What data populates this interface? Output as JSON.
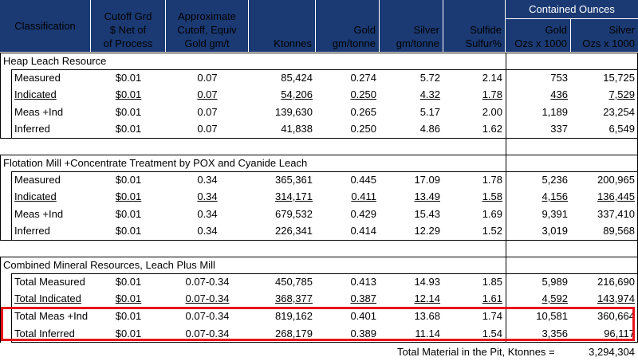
{
  "header": {
    "classification": "Classification",
    "cutoff_grd": [
      "Cutoff Grd",
      "$ Net of",
      "of Process"
    ],
    "approx_cutoff": [
      "Approximate",
      "Cutoff, Equiv",
      "Gold gm/t"
    ],
    "ktonnes": "Ktonnes",
    "gold": [
      "Gold",
      "gm/tonne"
    ],
    "silver": [
      "Silver",
      "gm/tonne"
    ],
    "sulfide": [
      "Sulfide",
      "Sulfur%"
    ],
    "contained_ounces": "Contained Ounces",
    "co_gold": [
      "Gold",
      "Ozs x 1000"
    ],
    "co_silver": [
      "Silver",
      "Ozs x 1000"
    ]
  },
  "sections": [
    {
      "title": "Heap Leach Resource",
      "rows": [
        {
          "label": "Measured",
          "cutoff": "$0.01",
          "approx": "0.07",
          "ktonnes": "85,424",
          "gold": "0.274",
          "silver": "5.72",
          "sulfur": "2.14",
          "oz_gold": "753",
          "oz_silver": "15,725",
          "underline": false
        },
        {
          "label": "Indicated",
          "cutoff": "$0.01",
          "approx": "0.07",
          "ktonnes": "54,206",
          "gold": "0.250",
          "silver": "4.32",
          "sulfur": "1.78",
          "oz_gold": "436",
          "oz_silver": "7,529",
          "underline": true
        },
        {
          "label": "Meas +Ind",
          "cutoff": "$0.01",
          "approx": "0.07",
          "ktonnes": "139,630",
          "gold": "0.265",
          "silver": "5.17",
          "sulfur": "2.00",
          "oz_gold": "1,189",
          "oz_silver": "23,254",
          "underline": false
        },
        {
          "label": "Inferred",
          "cutoff": "$0.01",
          "approx": "0.07",
          "ktonnes": "41,838",
          "gold": "0.250",
          "silver": "4.86",
          "sulfur": "1.62",
          "oz_gold": "337",
          "oz_silver": "6,549",
          "underline": false
        }
      ]
    },
    {
      "title": "Flotation Mill +Concentrate Treatment by POX and Cyanide Leach",
      "rows": [
        {
          "label": "Measured",
          "cutoff": "$0.01",
          "approx": "0.34",
          "ktonnes": "365,361",
          "gold": "0.445",
          "silver": "17.09",
          "sulfur": "1.78",
          "oz_gold": "5,236",
          "oz_silver": "200,965",
          "underline": false
        },
        {
          "label": "Indicated",
          "cutoff": "$0.01",
          "approx": "0.34",
          "ktonnes": "314,171",
          "gold": "0.411",
          "silver": "13.49",
          "sulfur": "1.58",
          "oz_gold": "4,156",
          "oz_silver": "136,445",
          "underline": true
        },
        {
          "label": "Meas +Ind",
          "cutoff": "$0.01",
          "approx": "0.34",
          "ktonnes": "679,532",
          "gold": "0.429",
          "silver": "15.43",
          "sulfur": "1.69",
          "oz_gold": "9,391",
          "oz_silver": "337,410",
          "underline": false
        },
        {
          "label": "Inferred",
          "cutoff": "$0.01",
          "approx": "0.34",
          "ktonnes": "226,341",
          "gold": "0.414",
          "silver": "12.29",
          "sulfur": "1.52",
          "oz_gold": "3,019",
          "oz_silver": "89,568",
          "underline": false
        }
      ]
    },
    {
      "title": "Combined Mineral Resources, Leach Plus Mill",
      "rows": [
        {
          "label": "Total Measured",
          "cutoff": "$0.01",
          "approx": "0.07-0.34",
          "ktonnes": "450,785",
          "gold": "0.413",
          "silver": "14.93",
          "sulfur": "1.85",
          "oz_gold": "5,989",
          "oz_silver": "216,690",
          "underline": false
        },
        {
          "label": "Total Indicated",
          "cutoff": "$0.01",
          "approx": "0.07-0.34",
          "ktonnes": "368,377",
          "gold": "0.387",
          "silver": "12.14",
          "sulfur": "1.61",
          "oz_gold": "4,592",
          "oz_silver": "143,974",
          "underline": true
        },
        {
          "label": "Total Meas +Ind",
          "cutoff": "$0.01",
          "approx": "0.07-0.34",
          "ktonnes": "819,162",
          "gold": "0.401",
          "silver": "13.68",
          "sulfur": "1.74",
          "oz_gold": "10,581",
          "oz_silver": "360,664",
          "underline": false
        },
        {
          "label": "Total Inferred",
          "cutoff": "$0.01",
          "approx": "0.07-0.34",
          "ktonnes": "268,179",
          "gold": "0.389",
          "silver": "11.14",
          "sulfur": "1.54",
          "oz_gold": "3,356",
          "oz_silver": "96,117",
          "underline": false
        }
      ]
    }
  ],
  "footer": {
    "label": "Total Material in the Pit, Ktonnes =",
    "value": "3,294,304"
  },
  "colors": {
    "header_bg": "#1b3a73",
    "highlight_box": "#e8141b"
  }
}
